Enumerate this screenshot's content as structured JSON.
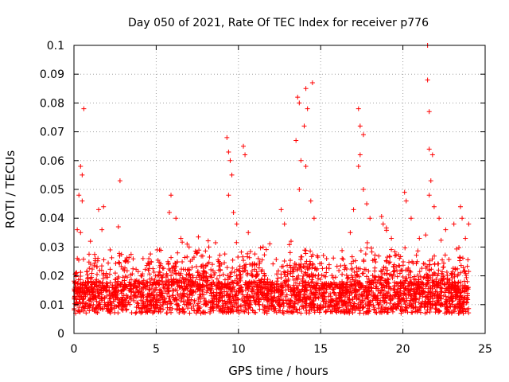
{
  "chart_data": {
    "type": "scatter",
    "title": "Day 050 of 2021, Rate Of TEC Index for receiver p776",
    "xlabel": "GPS time / hours",
    "ylabel": "ROTI / TECUs",
    "xlim": [
      0,
      25
    ],
    "ylim": [
      0,
      0.1
    ],
    "xticks": [
      0,
      5,
      10,
      15,
      20,
      25
    ],
    "xtick_labels": [
      "0",
      "5",
      "10",
      "15",
      "20",
      "25"
    ],
    "yticks": [
      0,
      0.01,
      0.02,
      0.03,
      0.04,
      0.05,
      0.06,
      0.07,
      0.08,
      0.09,
      0.1
    ],
    "ytick_labels": [
      "0",
      "0.01",
      "0.02",
      "0.03",
      "0.04",
      "0.05",
      "0.06",
      "0.07",
      "0.08",
      "0.09",
      "0.1"
    ],
    "grid": true,
    "marker": "+",
    "marker_color": "#ff0000",
    "data_description": "Dense cloud of ROTI samples (thousands of points) mostly between 0.003 and 0.02 TECU across 0-24 h; representative sample listed below.",
    "points": [
      [
        0.4,
        0.058
      ],
      [
        0.5,
        0.055
      ],
      [
        0.6,
        0.078
      ],
      [
        0.3,
        0.048
      ],
      [
        0.5,
        0.046
      ],
      [
        0.2,
        0.036
      ],
      [
        0.4,
        0.035
      ],
      [
        1.0,
        0.032
      ],
      [
        1.5,
        0.043
      ],
      [
        1.8,
        0.044
      ],
      [
        1.7,
        0.036
      ],
      [
        2.2,
        0.029
      ],
      [
        2.8,
        0.053
      ],
      [
        2.7,
        0.037
      ],
      [
        4.2,
        0.026
      ],
      [
        4.6,
        0.024
      ],
      [
        5.2,
        0.029
      ],
      [
        5.8,
        0.042
      ],
      [
        5.9,
        0.048
      ],
      [
        6.2,
        0.04
      ],
      [
        6.5,
        0.033
      ],
      [
        7.0,
        0.03
      ],
      [
        7.5,
        0.028
      ],
      [
        8.2,
        0.03
      ],
      [
        8.8,
        0.025
      ],
      [
        9.3,
        0.068
      ],
      [
        9.4,
        0.063
      ],
      [
        9.5,
        0.06
      ],
      [
        9.6,
        0.055
      ],
      [
        9.4,
        0.048
      ],
      [
        9.7,
        0.042
      ],
      [
        9.9,
        0.038
      ],
      [
        10.3,
        0.065
      ],
      [
        10.4,
        0.062
      ],
      [
        10.6,
        0.035
      ],
      [
        11.5,
        0.03
      ],
      [
        12.6,
        0.043
      ],
      [
        12.8,
        0.038
      ],
      [
        13.2,
        0.032
      ],
      [
        13.6,
        0.082
      ],
      [
        13.7,
        0.08
      ],
      [
        13.5,
        0.067
      ],
      [
        13.8,
        0.06
      ],
      [
        14.1,
        0.085
      ],
      [
        14.2,
        0.078
      ],
      [
        14.0,
        0.072
      ],
      [
        14.5,
        0.087
      ],
      [
        13.7,
        0.05
      ],
      [
        14.1,
        0.058
      ],
      [
        14.4,
        0.046
      ],
      [
        14.6,
        0.04
      ],
      [
        15.2,
        0.02
      ],
      [
        16.3,
        0.018
      ],
      [
        16.8,
        0.035
      ],
      [
        17.0,
        0.043
      ],
      [
        17.3,
        0.078
      ],
      [
        17.4,
        0.072
      ],
      [
        17.6,
        0.069
      ],
      [
        17.4,
        0.062
      ],
      [
        17.3,
        0.058
      ],
      [
        17.6,
        0.05
      ],
      [
        17.8,
        0.045
      ],
      [
        18.0,
        0.04
      ],
      [
        18.8,
        0.038
      ],
      [
        19.3,
        0.033
      ],
      [
        20.1,
        0.049
      ],
      [
        20.2,
        0.046
      ],
      [
        20.5,
        0.04
      ],
      [
        21.0,
        0.033
      ],
      [
        21.5,
        0.1
      ],
      [
        21.5,
        0.088
      ],
      [
        21.6,
        0.077
      ],
      [
        21.6,
        0.064
      ],
      [
        21.8,
        0.062
      ],
      [
        21.7,
        0.053
      ],
      [
        21.6,
        0.048
      ],
      [
        21.9,
        0.044
      ],
      [
        22.2,
        0.04
      ],
      [
        22.6,
        0.036
      ],
      [
        23.1,
        0.038
      ],
      [
        23.5,
        0.044
      ],
      [
        23.6,
        0.04
      ],
      [
        23.8,
        0.033
      ],
      [
        24.0,
        0.038
      ]
    ]
  }
}
